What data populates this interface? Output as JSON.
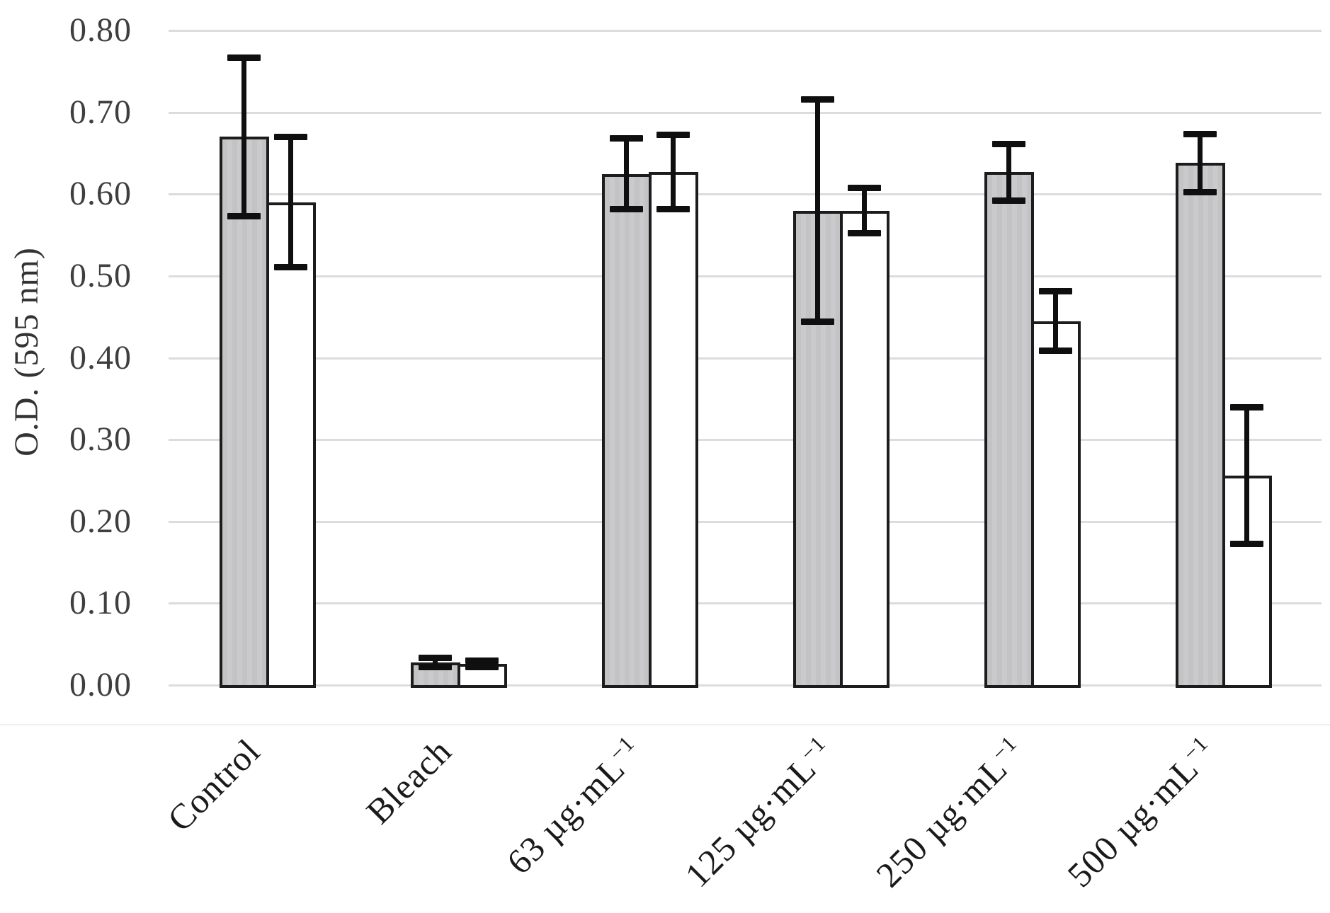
{
  "chart_data": {
    "type": "bar",
    "title": "",
    "xlabel": "",
    "ylabel": "O.D. (595 nm)",
    "ylim": [
      0.0,
      0.8
    ],
    "ytick_step": 0.1,
    "ytick_labels": [
      "0.00",
      "0.10",
      "0.20",
      "0.30",
      "0.40",
      "0.50",
      "0.60",
      "0.70",
      "0.80"
    ],
    "grid": "horizontal",
    "legend": "none",
    "categories": [
      {
        "text": "Control",
        "sup": ""
      },
      {
        "text": "Bleach",
        "sup": ""
      },
      {
        "text": "63 µg·mL",
        "sup": "−1"
      },
      {
        "text": "125 µg·mL",
        "sup": "−1"
      },
      {
        "text": "250 µg·mL",
        "sup": "−1"
      },
      {
        "text": "500 µg·mL",
        "sup": "−1"
      }
    ],
    "series": [
      {
        "name": "shaded-bars",
        "fill": "#c6c6c8",
        "border": "#1c1c1c",
        "values": [
          0.67,
          0.028,
          0.625,
          0.58,
          0.627,
          0.638
        ],
        "errors": [
          0.097,
          0.006,
          0.044,
          0.136,
          0.035,
          0.036
        ]
      },
      {
        "name": "white-bars",
        "fill": "#ffffff",
        "border": "#1c1c1c",
        "values": [
          0.59,
          0.026,
          0.627,
          0.58,
          0.445,
          0.256
        ],
        "errors": [
          0.08,
          0.004,
          0.046,
          0.028,
          0.037,
          0.084
        ]
      }
    ],
    "error_bar_color": "#0f0f0f",
    "gridline_color": "#dcdcdc",
    "tick_label_color": "#3f3f3f",
    "category_label_color": "#1a1a1a"
  }
}
